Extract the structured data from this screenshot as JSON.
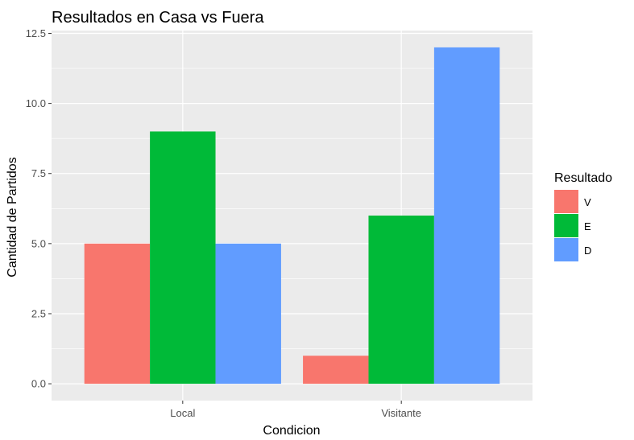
{
  "chart_data": {
    "type": "bar",
    "title": "Resultados en Casa vs Fuera",
    "xlabel": "Condicion",
    "ylabel": "Cantidad de Partidos",
    "categories": [
      "Local",
      "Visitante"
    ],
    "series": [
      {
        "name": "V",
        "values": [
          5,
          1
        ],
        "color": "#F8766D"
      },
      {
        "name": "E",
        "values": [
          9,
          6
        ],
        "color": "#00BA38"
      },
      {
        "name": "D",
        "values": [
          5,
          12
        ],
        "color": "#619CFF"
      }
    ],
    "ylim": [
      -0.6,
      12.6
    ],
    "yticks": [
      "0.0",
      "2.5",
      "5.0",
      "7.5",
      "10.0",
      "12.5"
    ],
    "legend_title": "Resultado",
    "legend_position": "right",
    "grid": true,
    "panel_background": "#EBEBEB",
    "grid_color": "#FFFFFF"
  }
}
